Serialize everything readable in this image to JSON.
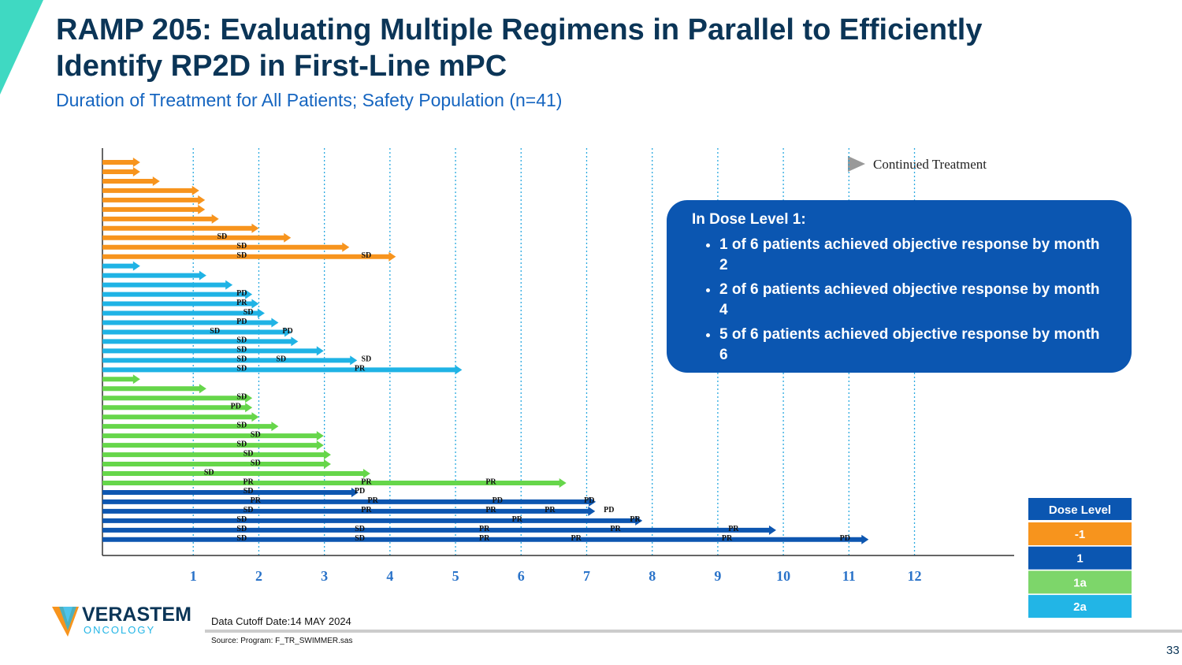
{
  "header": {
    "title_lines": [
      "RAMP 205: Evaluating Multiple Regimens in Parallel to Efficiently",
      "Identify RP2D in First-Line mPC"
    ],
    "subtitle": "Duration of Treatment for All Patients; Safety Population (n=41)"
  },
  "chart_data": {
    "type": "swimmer",
    "legend_note": "Continued Treatment",
    "xlim": [
      -0.385,
      13.52
    ],
    "xticks": [
      1,
      2,
      3,
      4,
      5,
      6,
      7,
      8,
      9,
      10,
      11,
      12
    ],
    "grid": true,
    "series": [
      {
        "color": "#f7941d",
        "values": [
          0.19,
          0.19,
          0.49,
          1.09,
          1.18,
          1.18,
          1.39,
          2.0,
          2.49,
          3.38,
          4.09
        ],
        "annotations": [
          [],
          [],
          [],
          [],
          [],
          [],
          [],
          [],
          [
            {
              "x": 1.44,
              "label": "SD"
            }
          ],
          [
            {
              "x": 1.74,
              "label": "SD"
            }
          ],
          [
            {
              "x": 1.74,
              "label": "SD"
            },
            {
              "x": 3.64,
              "label": "SD"
            }
          ]
        ]
      },
      {
        "color": "#1fb3e5",
        "values": [
          0.19,
          1.2,
          1.6,
          1.9,
          2.0,
          2.09,
          2.3,
          2.5,
          2.6,
          2.99,
          3.5,
          5.1
        ],
        "annotations": [
          [],
          [],
          [],
          [
            {
              "x": 1.74,
              "label": "PD"
            }
          ],
          [
            {
              "x": 1.74,
              "label": "PR"
            }
          ],
          [
            {
              "x": 1.84,
              "label": "SD"
            }
          ],
          [
            {
              "x": 1.74,
              "label": "PD"
            }
          ],
          [
            {
              "x": 1.33,
              "label": "SD"
            },
            {
              "x": 2.44,
              "label": "PD"
            }
          ],
          [
            {
              "x": 1.74,
              "label": "SD"
            }
          ],
          [
            {
              "x": 1.74,
              "label": "SD"
            }
          ],
          [
            {
              "x": 1.74,
              "label": "SD"
            },
            {
              "x": 2.34,
              "label": "SD"
            },
            {
              "x": 3.64,
              "label": "SD"
            }
          ],
          [
            {
              "x": 1.74,
              "label": "SD"
            },
            {
              "x": 3.54,
              "label": "PR"
            }
          ]
        ]
      },
      {
        "color": "#66d64a",
        "values": [
          0.19,
          1.2,
          1.9,
          1.9,
          2.0,
          2.3,
          2.99,
          2.99,
          3.1,
          3.1,
          3.7,
          6.69
        ],
        "annotations": [
          [],
          [],
          [
            {
              "x": 1.74,
              "label": "SD"
            }
          ],
          [
            {
              "x": 1.65,
              "label": "PD"
            }
          ],
          [],
          [
            {
              "x": 1.74,
              "label": "SD"
            }
          ],
          [
            {
              "x": 1.95,
              "label": "SD"
            }
          ],
          [
            {
              "x": 1.74,
              "label": "SD"
            }
          ],
          [
            {
              "x": 1.84,
              "label": "SD"
            }
          ],
          [
            {
              "x": 1.95,
              "label": "SD"
            }
          ],
          [
            {
              "x": 1.24,
              "label": "SD"
            }
          ],
          [
            {
              "x": 1.84,
              "label": "PR"
            },
            {
              "x": 3.64,
              "label": "PR"
            },
            {
              "x": 5.54,
              "label": "PR"
            }
          ]
        ]
      },
      {
        "color": "#0d56b0",
        "values": [
          3.52,
          7.14,
          7.13,
          7.85,
          9.89,
          11.3
        ],
        "annotations": [
          [
            {
              "x": 1.84,
              "label": "SD"
            },
            {
              "x": 3.54,
              "label": "PD"
            }
          ],
          [
            {
              "x": 1.95,
              "label": "PR"
            },
            {
              "x": 3.74,
              "label": "PR"
            },
            {
              "x": 5.64,
              "label": "PD"
            },
            {
              "x": 7.04,
              "label": "PD"
            }
          ],
          [
            {
              "x": 1.84,
              "label": "SD"
            },
            {
              "x": 3.64,
              "label": "PR"
            },
            {
              "x": 5.54,
              "label": "PR"
            },
            {
              "x": 6.44,
              "label": "PR"
            },
            {
              "x": 7.34,
              "label": "PD"
            }
          ],
          [
            {
              "x": 1.74,
              "label": "SD"
            },
            {
              "x": 5.94,
              "label": "PR"
            },
            {
              "x": 7.74,
              "label": "PR"
            }
          ],
          [
            {
              "x": 1.74,
              "label": "SD"
            },
            {
              "x": 3.54,
              "label": "SD"
            },
            {
              "x": 5.44,
              "label": "PR"
            },
            {
              "x": 7.44,
              "label": "PR"
            },
            {
              "x": 9.24,
              "label": "PR"
            }
          ],
          [
            {
              "x": 1.74,
              "label": "SD"
            },
            {
              "x": 3.54,
              "label": "SD"
            },
            {
              "x": 5.44,
              "label": "PR"
            },
            {
              "x": 6.84,
              "label": "PR"
            },
            {
              "x": 9.14,
              "label": "PR"
            },
            {
              "x": 10.94,
              "label": "PD"
            }
          ]
        ]
      }
    ]
  },
  "legend": {
    "title": "Dose Level",
    "items": [
      {
        "label": "-1",
        "color": "#f7941d"
      },
      {
        "label": "1",
        "color": "#0b56b1"
      },
      {
        "label": "1a",
        "color": "#7dd66a"
      },
      {
        "label": "2a",
        "color": "#22b5e6"
      }
    ]
  },
  "callout": {
    "title": "In Dose Level 1:",
    "bullets": [
      "1 of 6 patients achieved objective response by month 2",
      "2 of 6 patients achieved objective response by month 4",
      "5 of 6 patients achieved objective response by month 6"
    ]
  },
  "footer": {
    "logo_main": "VERASTEM",
    "logo_sub": "ONCOLOGY",
    "cutoff": "Data Cutoff Date:14 MAY 2024",
    "source": "Source: Program: F_TR_SWIMMER.sas",
    "page": "33"
  }
}
